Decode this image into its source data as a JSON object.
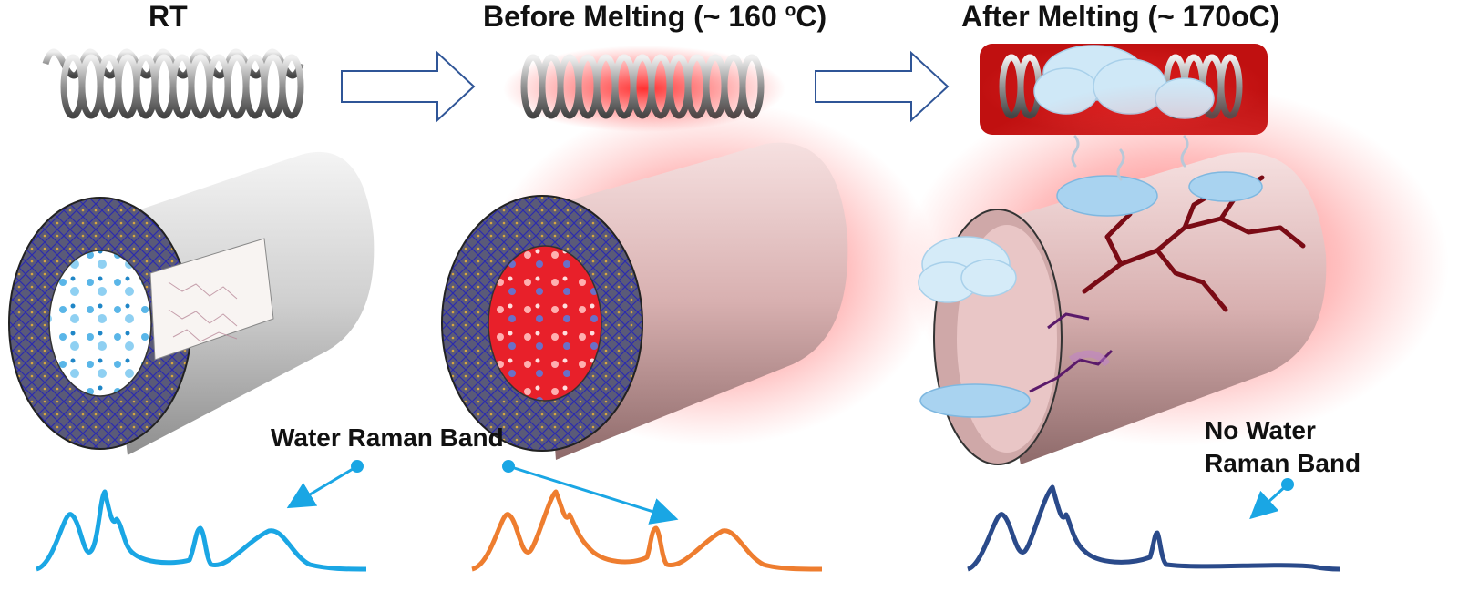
{
  "stages": [
    {
      "title": "RT"
    },
    {
      "title_main": "Before Melting (~ 160 ",
      "title_sup": "o",
      "title_end": "C)"
    },
    {
      "title": "After Melting (~ 170oC)"
    }
  ],
  "annotations": {
    "water_band": "Water Raman Band",
    "no_water_line1": "No Water",
    "no_water_line2": "Raman Band"
  },
  "colors": {
    "spectrum_rt": "#1aa6e4",
    "spectrum_before": "#ee7d2f",
    "spectrum_after": "#2a4a8a",
    "arrow_pointer": "#1aa6e4",
    "heat_glow": "#ff3030",
    "crack": "#7a0b15",
    "arrow_outline": "#2f5597"
  },
  "icons": [
    "heating-coil-icon",
    "process-arrow-icon",
    "steam-cloud-icon",
    "water-droplet-icon",
    "crack-icon"
  ]
}
